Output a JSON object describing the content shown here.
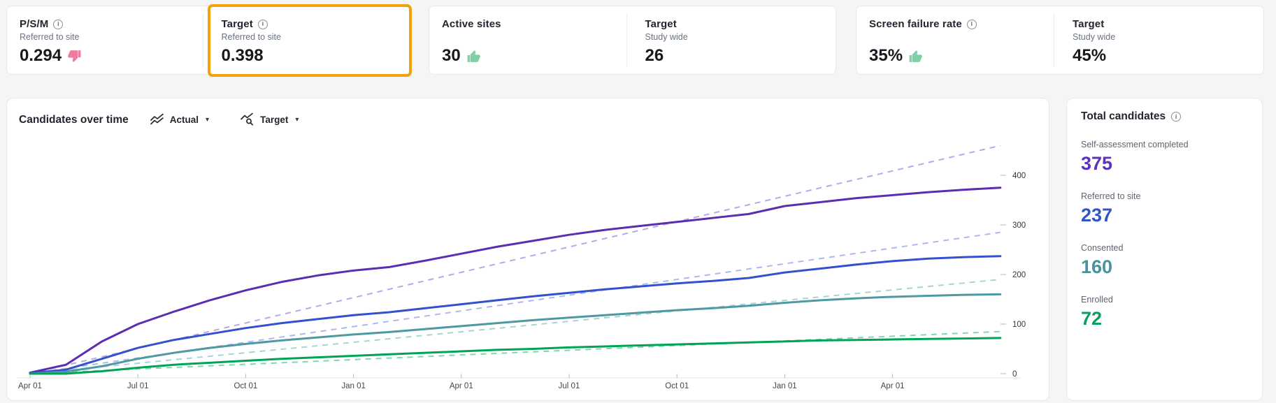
{
  "kpi_cards": [
    {
      "sections": [
        {
          "title": "P/S/M",
          "has_info": true,
          "subtitle": "Referred to site",
          "value": "0.294",
          "indicator": "thumb-down"
        },
        {
          "title": "Target",
          "has_info": true,
          "subtitle": "Referred to site",
          "value": "0.398",
          "indicator": null,
          "highlighted": true
        }
      ]
    },
    {
      "sections": [
        {
          "title": "Active sites",
          "has_info": false,
          "subtitle": "",
          "value": "30",
          "indicator": "thumb-up"
        },
        {
          "title": "Target",
          "has_info": false,
          "subtitle": "Study wide",
          "value": "26",
          "indicator": null
        }
      ]
    },
    {
      "sections": [
        {
          "title": "Screen failure rate",
          "has_info": true,
          "subtitle": "",
          "value": "35%",
          "indicator": "thumb-up"
        },
        {
          "title": "Target",
          "has_info": false,
          "subtitle": "Study wide",
          "value": "45%",
          "indicator": null
        }
      ]
    }
  ],
  "chart_card": {
    "title": "Candidates over time",
    "legend": [
      {
        "label": "Actual",
        "icon": "actual-lines-icon"
      },
      {
        "label": "Target",
        "icon": "target-lines-icon"
      }
    ]
  },
  "chart_data": {
    "type": "line",
    "title": "Candidates over time",
    "x_unit": "month",
    "x_tick_labels": [
      "Apr 01",
      "Jul 01",
      "Oct 01",
      "Jan 01",
      "Apr 01",
      "Jul 01",
      "Oct 01",
      "Jan 01",
      "Apr 01"
    ],
    "x_tick_every_n_months": 3,
    "y_ticks": [
      0,
      100,
      200,
      300,
      400
    ],
    "ylim": [
      0,
      470
    ],
    "y_axis_side": "right",
    "grid": false,
    "legend_position": "top",
    "series": [
      {
        "name": "Self-assessment completed",
        "style": "solid",
        "color": "#5b2db4",
        "dash_color": "#b7a8ea",
        "target_end": 460,
        "values": [
          2,
          18,
          65,
          100,
          125,
          148,
          168,
          185,
          198,
          208,
          215,
          228,
          242,
          256,
          268,
          280,
          290,
          298,
          306,
          314,
          322,
          338,
          346,
          354,
          360,
          366,
          371,
          375
        ]
      },
      {
        "name": "Referred to site",
        "style": "solid",
        "color": "#3351cf",
        "dash_color": "#aab9f0",
        "target_end": 285,
        "values": [
          1,
          8,
          30,
          52,
          68,
          80,
          92,
          102,
          110,
          118,
          124,
          132,
          140,
          148,
          156,
          163,
          170,
          176,
          182,
          187,
          193,
          204,
          212,
          220,
          227,
          232,
          235,
          237
        ]
      },
      {
        "name": "Consented",
        "style": "solid",
        "color": "#4f9aa2",
        "dash_color": "#a9d4d4",
        "target_end": 190,
        "values": [
          0,
          4,
          15,
          30,
          42,
          52,
          60,
          67,
          73,
          79,
          84,
          90,
          96,
          102,
          108,
          113,
          118,
          123,
          128,
          132,
          137,
          143,
          148,
          152,
          155,
          157,
          159,
          160
        ]
      },
      {
        "name": "Enrolled",
        "style": "solid",
        "color": "#00a455",
        "dash_color": "#82d8ae",
        "target_end": 85,
        "values": [
          0,
          0,
          5,
          12,
          18,
          22,
          26,
          30,
          33,
          36,
          39,
          42,
          45,
          48,
          50,
          53,
          55,
          57,
          59,
          61,
          63,
          65,
          67,
          68,
          69,
          70,
          71,
          72
        ]
      }
    ],
    "targets_are_dashed_lines_from_zero": true
  },
  "totals_panel": {
    "title": "Total candidates",
    "items": [
      {
        "label": "Self-assessment completed",
        "value": "375",
        "color": "#5b33b8"
      },
      {
        "label": "Referred to site",
        "value": "237",
        "color": "#2f55c9"
      },
      {
        "label": "Consented",
        "value": "160",
        "color": "#4a92a0"
      },
      {
        "label": "Enrolled",
        "value": "72",
        "color": "#0b9e5e"
      }
    ]
  },
  "colors": {
    "highlight_border": "#f0a30c",
    "thumb_up": "#7fd0a7",
    "thumb_down": "#ef7b9d",
    "page_background": "#f5f5f6",
    "axis_text": "#44464c"
  }
}
